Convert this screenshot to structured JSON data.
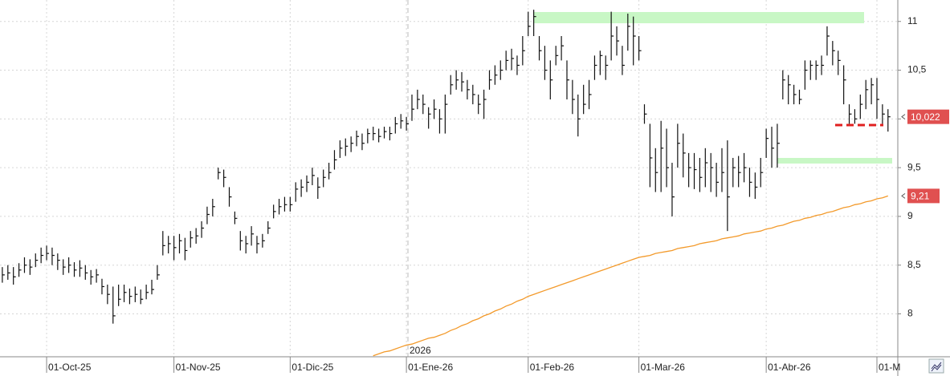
{
  "chart_data": {
    "type": "ohlc",
    "color": "#111111",
    "ylim": [
      7.56,
      11.22
    ],
    "yticks": [
      8,
      {
        "value": 8.5,
        "label": "8,5"
      },
      9,
      {
        "value": 9.5,
        "label": "9,5"
      },
      10,
      {
        "value": 10.5,
        "label": "10,5"
      },
      11
    ],
    "grid": true,
    "year_label": "2026",
    "categories": [
      null,
      null,
      null,
      null,
      null,
      null,
      null,
      null,
      "01-Oct-25",
      null,
      null,
      null,
      null,
      null,
      null,
      null,
      null,
      null,
      null,
      null,
      null,
      null,
      null,
      null,
      null,
      null,
      null,
      null,
      null,
      null,
      null,
      "01-Nov-25",
      null,
      null,
      null,
      null,
      null,
      null,
      null,
      null,
      null,
      null,
      null,
      null,
      null,
      null,
      null,
      null,
      null,
      null,
      null,
      null,
      "01-Dic-25",
      null,
      null,
      null,
      null,
      null,
      null,
      null,
      null,
      null,
      null,
      null,
      null,
      null,
      null,
      null,
      null,
      null,
      null,
      null,
      null,
      "01-Ene-26",
      null,
      null,
      null,
      null,
      null,
      null,
      null,
      null,
      null,
      null,
      null,
      null,
      null,
      null,
      null,
      null,
      null,
      null,
      null,
      null,
      null,
      "01-Feb-26",
      null,
      null,
      null,
      null,
      null,
      null,
      null,
      null,
      null,
      null,
      null,
      null,
      null,
      null,
      null,
      null,
      null,
      null,
      null,
      "01-Mar-26",
      null,
      null,
      null,
      null,
      null,
      null,
      null,
      null,
      null,
      null,
      null,
      null,
      null,
      null,
      null,
      null,
      null,
      null,
      null,
      null,
      null,
      null,
      "01-Abr-26",
      null,
      null,
      null,
      null,
      null,
      null,
      null,
      null,
      null,
      null,
      null,
      null,
      null,
      null,
      null,
      null,
      null,
      null,
      null,
      "01-M",
      null,
      null
    ],
    "high": [
      8.48,
      8.5,
      8.48,
      8.52,
      8.58,
      8.56,
      8.62,
      8.68,
      8.7,
      8.68,
      8.62,
      8.56,
      8.58,
      8.53,
      8.55,
      8.5,
      8.45,
      8.46,
      8.36,
      8.3,
      8.28,
      8.3,
      8.3,
      8.26,
      8.28,
      8.25,
      8.3,
      8.35,
      8.5,
      8.85,
      8.8,
      8.8,
      8.82,
      8.78,
      8.85,
      8.88,
      8.95,
      9.1,
      9.18,
      9.5,
      9.48,
      9.3,
      9.05,
      8.85,
      8.8,
      8.9,
      8.8,
      8.82,
      8.95,
      9.12,
      9.18,
      9.2,
      9.2,
      9.35,
      9.38,
      9.42,
      9.5,
      9.4,
      9.48,
      9.55,
      9.68,
      9.78,
      9.8,
      9.82,
      9.88,
      9.85,
      9.9,
      9.92,
      9.9,
      9.92,
      9.92,
      10.02,
      10.05,
      10.02,
      10.25,
      10.3,
      10.25,
      10.12,
      10.2,
      10.1,
      10.25,
      10.45,
      10.5,
      10.48,
      10.4,
      10.35,
      10.25,
      10.3,
      10.5,
      10.55,
      10.6,
      10.7,
      10.72,
      10.65,
      10.85,
      11.1,
      11.12,
      10.85,
      10.75,
      10.6,
      10.75,
      10.85,
      10.6,
      10.4,
      10.25,
      10.35,
      10.4,
      10.65,
      10.7,
      10.65,
      11.1,
      10.95,
      10.75,
      11.08,
      11.05,
      10.85,
      10.15,
      9.95,
      9.7,
      9.98,
      9.9,
      9.55,
      9.95,
      9.85,
      9.65,
      9.65,
      9.6,
      9.7,
      9.65,
      9.55,
      9.7,
      9.78,
      9.6,
      9.62,
      9.65,
      9.5,
      9.45,
      9.6,
      9.9,
      9.92,
      9.95,
      10.5,
      10.45,
      10.35,
      10.3,
      10.6,
      10.6,
      10.6,
      10.65,
      10.95,
      10.8,
      10.7,
      10.55,
      10.15,
      10.1,
      10.25,
      10.4,
      10.42,
      10.42,
      10.15,
      10.1
    ],
    "low": [
      8.32,
      8.35,
      8.3,
      8.38,
      8.42,
      8.4,
      8.48,
      8.52,
      8.55,
      8.5,
      8.45,
      8.4,
      8.42,
      8.38,
      8.38,
      8.35,
      8.3,
      8.32,
      8.2,
      8.1,
      7.9,
      8.08,
      8.12,
      8.1,
      8.12,
      8.1,
      8.15,
      8.2,
      8.35,
      8.6,
      8.62,
      8.55,
      8.62,
      8.55,
      8.68,
      8.72,
      8.78,
      8.92,
      9.0,
      9.38,
      9.3,
      9.1,
      8.92,
      8.65,
      8.62,
      8.7,
      8.62,
      8.68,
      8.82,
      8.98,
      9.02,
      9.05,
      9.05,
      9.15,
      9.2,
      9.25,
      9.32,
      9.18,
      9.3,
      9.38,
      9.48,
      9.6,
      9.62,
      9.66,
      9.72,
      9.68,
      9.75,
      9.78,
      9.76,
      9.8,
      9.78,
      9.85,
      9.9,
      9.88,
      9.98,
      10.1,
      10.05,
      9.9,
      10.0,
      9.85,
      9.85,
      10.25,
      10.3,
      10.28,
      10.2,
      10.15,
      10.05,
      10.0,
      10.3,
      10.35,
      10.4,
      10.5,
      10.5,
      10.45,
      10.55,
      10.85,
      10.85,
      10.6,
      10.4,
      10.2,
      10.55,
      10.6,
      10.2,
      10.05,
      9.82,
      10.05,
      10.1,
      10.4,
      10.45,
      10.4,
      10.6,
      10.65,
      10.45,
      10.7,
      10.55,
      10.6,
      9.95,
      9.3,
      9.25,
      9.25,
      9.3,
      9.0,
      9.5,
      9.4,
      9.3,
      9.28,
      9.25,
      9.3,
      9.25,
      9.2,
      9.25,
      8.85,
      9.3,
      9.3,
      9.35,
      9.2,
      9.18,
      9.3,
      9.6,
      9.5,
      9.5,
      10.2,
      10.15,
      10.15,
      10.15,
      10.3,
      10.4,
      10.4,
      10.45,
      10.65,
      10.55,
      10.45,
      10.15,
      9.95,
      9.95,
      10.0,
      10.1,
      10.15,
      10.0,
      9.95,
      9.87
    ],
    "close": [
      8.4,
      8.42,
      8.38,
      8.45,
      8.5,
      8.48,
      8.55,
      8.6,
      8.62,
      8.6,
      8.55,
      8.48,
      8.5,
      8.45,
      8.47,
      8.42,
      8.38,
      8.4,
      8.28,
      8.2,
      7.98,
      8.15,
      8.22,
      8.18,
      8.2,
      8.15,
      8.22,
      8.25,
      8.4,
      8.7,
      8.72,
      8.68,
      8.75,
      8.65,
      8.78,
      8.8,
      8.88,
      9.02,
      9.1,
      9.45,
      9.4,
      9.2,
      8.98,
      8.75,
      8.72,
      8.82,
      8.72,
      8.75,
      8.88,
      9.05,
      9.1,
      9.12,
      9.12,
      9.28,
      9.3,
      9.35,
      9.42,
      9.3,
      9.4,
      9.45,
      9.58,
      9.7,
      9.72,
      9.75,
      9.82,
      9.75,
      9.85,
      9.85,
      9.82,
      9.87,
      9.85,
      9.95,
      9.98,
      9.95,
      10.1,
      10.2,
      10.15,
      10.05,
      10.1,
      10.0,
      10.15,
      10.35,
      10.4,
      10.38,
      10.3,
      10.25,
      10.15,
      10.2,
      10.4,
      10.45,
      10.5,
      10.6,
      10.62,
      10.55,
      10.7,
      10.95,
      11.05,
      10.7,
      10.5,
      10.4,
      10.65,
      10.75,
      10.4,
      10.2,
      10.0,
      10.15,
      10.25,
      10.55,
      10.65,
      10.55,
      10.85,
      10.8,
      10.55,
      10.95,
      10.85,
      10.7,
      10.05,
      9.6,
      9.45,
      9.7,
      9.5,
      9.2,
      9.75,
      9.65,
      9.5,
      9.48,
      9.4,
      9.55,
      9.5,
      9.35,
      9.45,
      9.2,
      9.5,
      9.45,
      9.5,
      9.35,
      9.3,
      9.45,
      9.8,
      9.7,
      9.75,
      10.4,
      10.35,
      10.25,
      10.2,
      10.5,
      10.55,
      10.55,
      10.55,
      10.85,
      10.7,
      10.6,
      10.4,
      10.05,
      10.0,
      10.15,
      10.3,
      10.35,
      10.2,
      10.05,
      10.022
    ],
    "moving_average": {
      "color": "#f39a2b",
      "values": [
        null,
        null,
        null,
        null,
        null,
        null,
        null,
        null,
        null,
        null,
        null,
        null,
        null,
        null,
        null,
        null,
        null,
        null,
        null,
        null,
        null,
        null,
        null,
        null,
        null,
        null,
        null,
        null,
        null,
        null,
        null,
        null,
        null,
        null,
        null,
        null,
        null,
        null,
        null,
        null,
        null,
        null,
        null,
        null,
        null,
        null,
        null,
        null,
        null,
        null,
        null,
        null,
        null,
        null,
        null,
        null,
        null,
        null,
        null,
        null,
        null,
        null,
        null,
        null,
        null,
        null,
        null,
        7.57,
        7.59,
        7.61,
        7.62,
        7.64,
        7.66,
        7.68,
        7.69,
        7.71,
        7.73,
        7.75,
        7.76,
        7.78,
        7.8,
        7.83,
        7.85,
        7.88,
        7.9,
        7.93,
        7.95,
        7.98,
        8.0,
        8.03,
        8.05,
        8.08,
        8.1,
        8.13,
        8.15,
        8.18,
        8.2,
        8.22,
        8.24,
        8.26,
        8.28,
        8.3,
        8.32,
        8.34,
        8.36,
        8.38,
        8.4,
        8.42,
        8.44,
        8.46,
        8.48,
        8.5,
        8.52,
        8.54,
        8.56,
        8.58,
        8.59,
        8.6,
        8.62,
        8.63,
        8.64,
        8.65,
        8.67,
        8.68,
        8.69,
        8.7,
        8.72,
        8.73,
        8.74,
        8.75,
        8.77,
        8.78,
        8.79,
        8.8,
        8.82,
        8.83,
        8.84,
        8.85,
        8.87,
        8.88,
        8.9,
        8.91,
        8.93,
        8.95,
        8.96,
        8.98,
        8.99,
        9.01,
        9.02,
        9.04,
        9.05,
        9.07,
        9.09,
        9.1,
        9.12,
        9.13,
        9.15,
        9.16,
        9.18,
        9.19,
        9.21
      ]
    },
    "last_price": {
      "value": 10.022,
      "label": "10,022",
      "color": "#e05050"
    },
    "ma_price": {
      "value": 9.21,
      "label": "9,21",
      "color": "#e05050"
    }
  }
}
